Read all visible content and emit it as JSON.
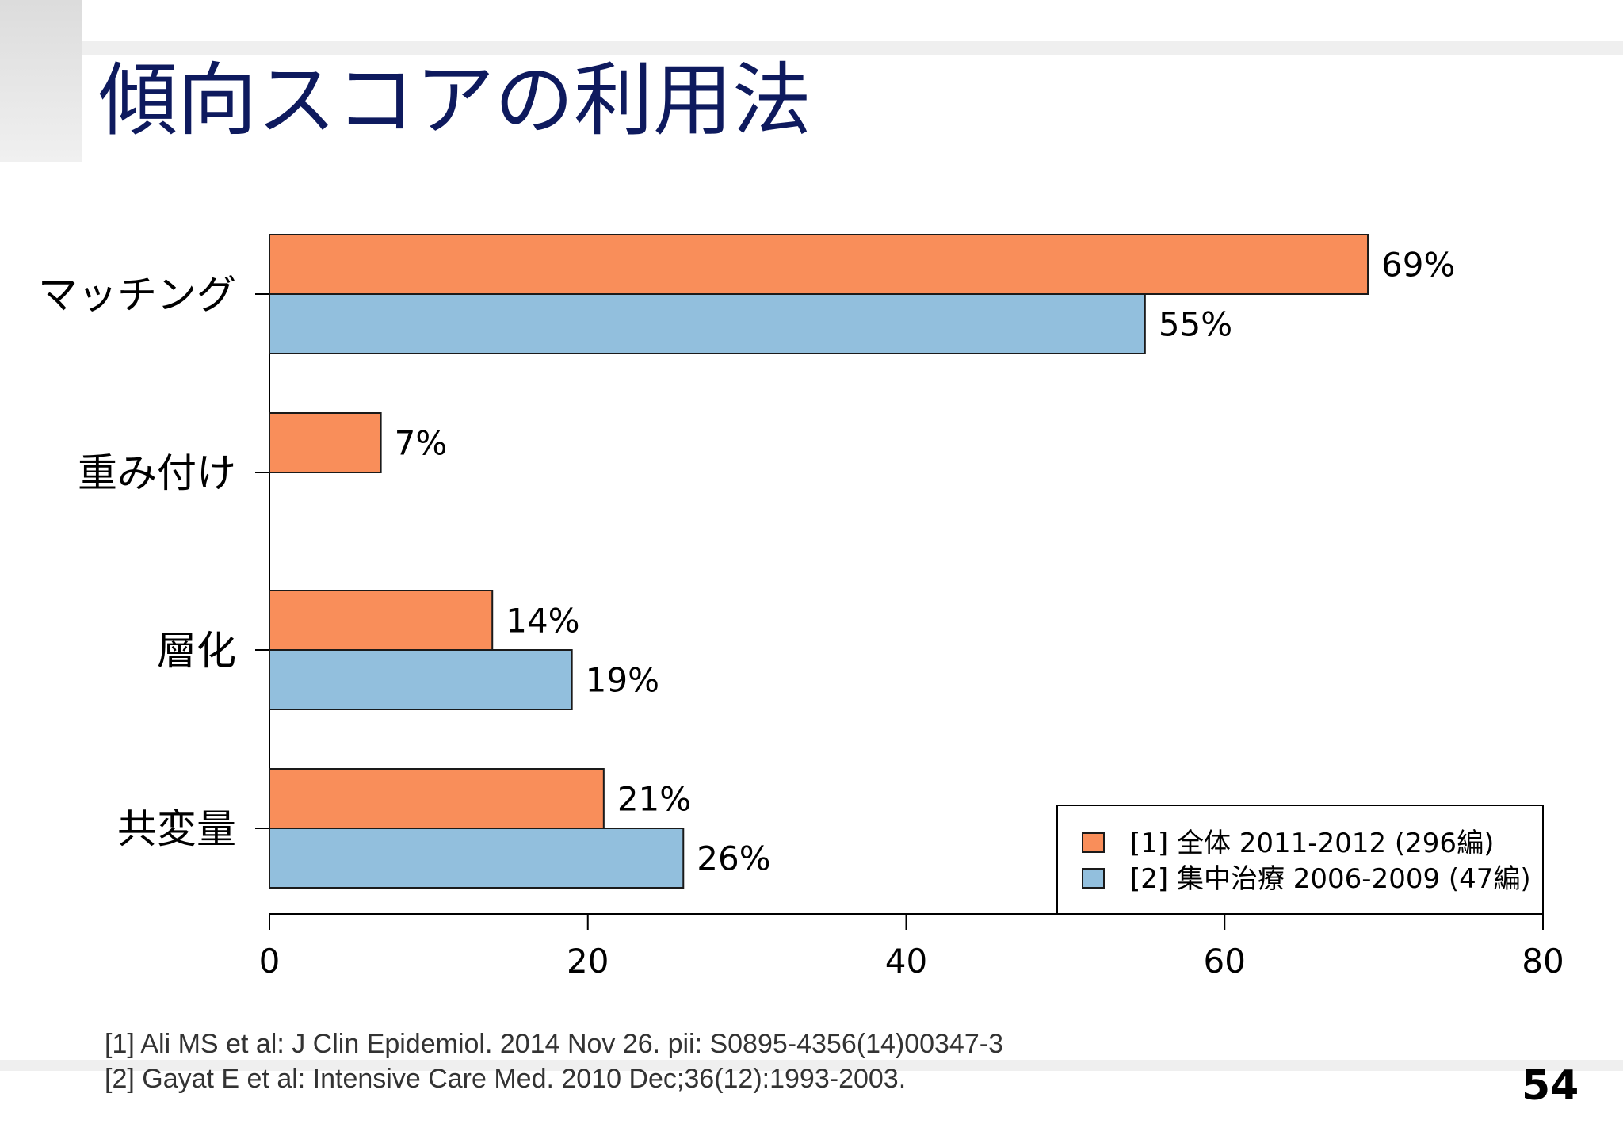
{
  "slide": {
    "title": "傾向スコアの利用法",
    "references": [
      "[1] Ali MS et al:  J Clin Epidemiol. 2014 Nov 26. pii: S0895-4356(14)00347-3",
      "[2] Gayat E et al: Intensive Care Med. 2010 Dec;36(12):1993-2003."
    ],
    "page_number": "54"
  },
  "chart_data": {
    "type": "bar",
    "orientation": "horizontal",
    "categories": [
      "マッチング",
      "重み付け",
      "層化",
      "共変量"
    ],
    "series": [
      {
        "name": "[1] 全体 2011-2012 (296編)",
        "color": "#f98e5a",
        "values": [
          69,
          7,
          14,
          21
        ],
        "labels": [
          "69%",
          "7%",
          "14%",
          "21%"
        ]
      },
      {
        "name": "[2] 集中治療 2006-2009 (47編)",
        "color": "#92bfdd",
        "values": [
          55,
          null,
          19,
          26
        ],
        "labels": [
          "55%",
          "",
          "19%",
          "26%"
        ]
      }
    ],
    "xlim": [
      0,
      80
    ],
    "xticks": [
      0,
      20,
      40,
      60,
      80
    ],
    "grid": false,
    "legend_position": "bottom-right"
  }
}
